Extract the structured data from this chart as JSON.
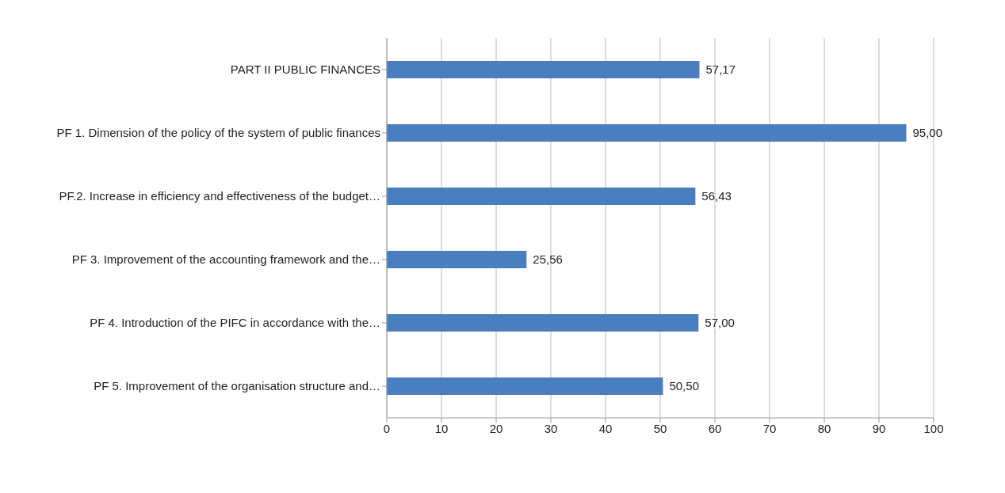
{
  "chart_data": {
    "type": "bar",
    "orientation": "horizontal",
    "categories": [
      "PART II PUBLIC FINANCES",
      "PF 1. Dimension of the policy of the system of public finances",
      "PF.2. Increase in efficiency and effectiveness of the budget…",
      "PF 3. Improvement of the accounting framework and the…",
      "PF 4. Introduction of the PIFC in accordance with the…",
      "PF 5. Improvement of the organisation structure and…"
    ],
    "values": [
      57.17,
      95.0,
      56.43,
      25.56,
      57.0,
      50.5
    ],
    "value_labels": [
      "57,17",
      "95,00",
      "56,43",
      "25,56",
      "57,00",
      "50,50"
    ],
    "color": "#4a7ebf",
    "xlim": [
      0,
      100
    ],
    "xticks": [
      0,
      10,
      20,
      30,
      40,
      50,
      60,
      70,
      80,
      90,
      100
    ],
    "grid": "x"
  }
}
